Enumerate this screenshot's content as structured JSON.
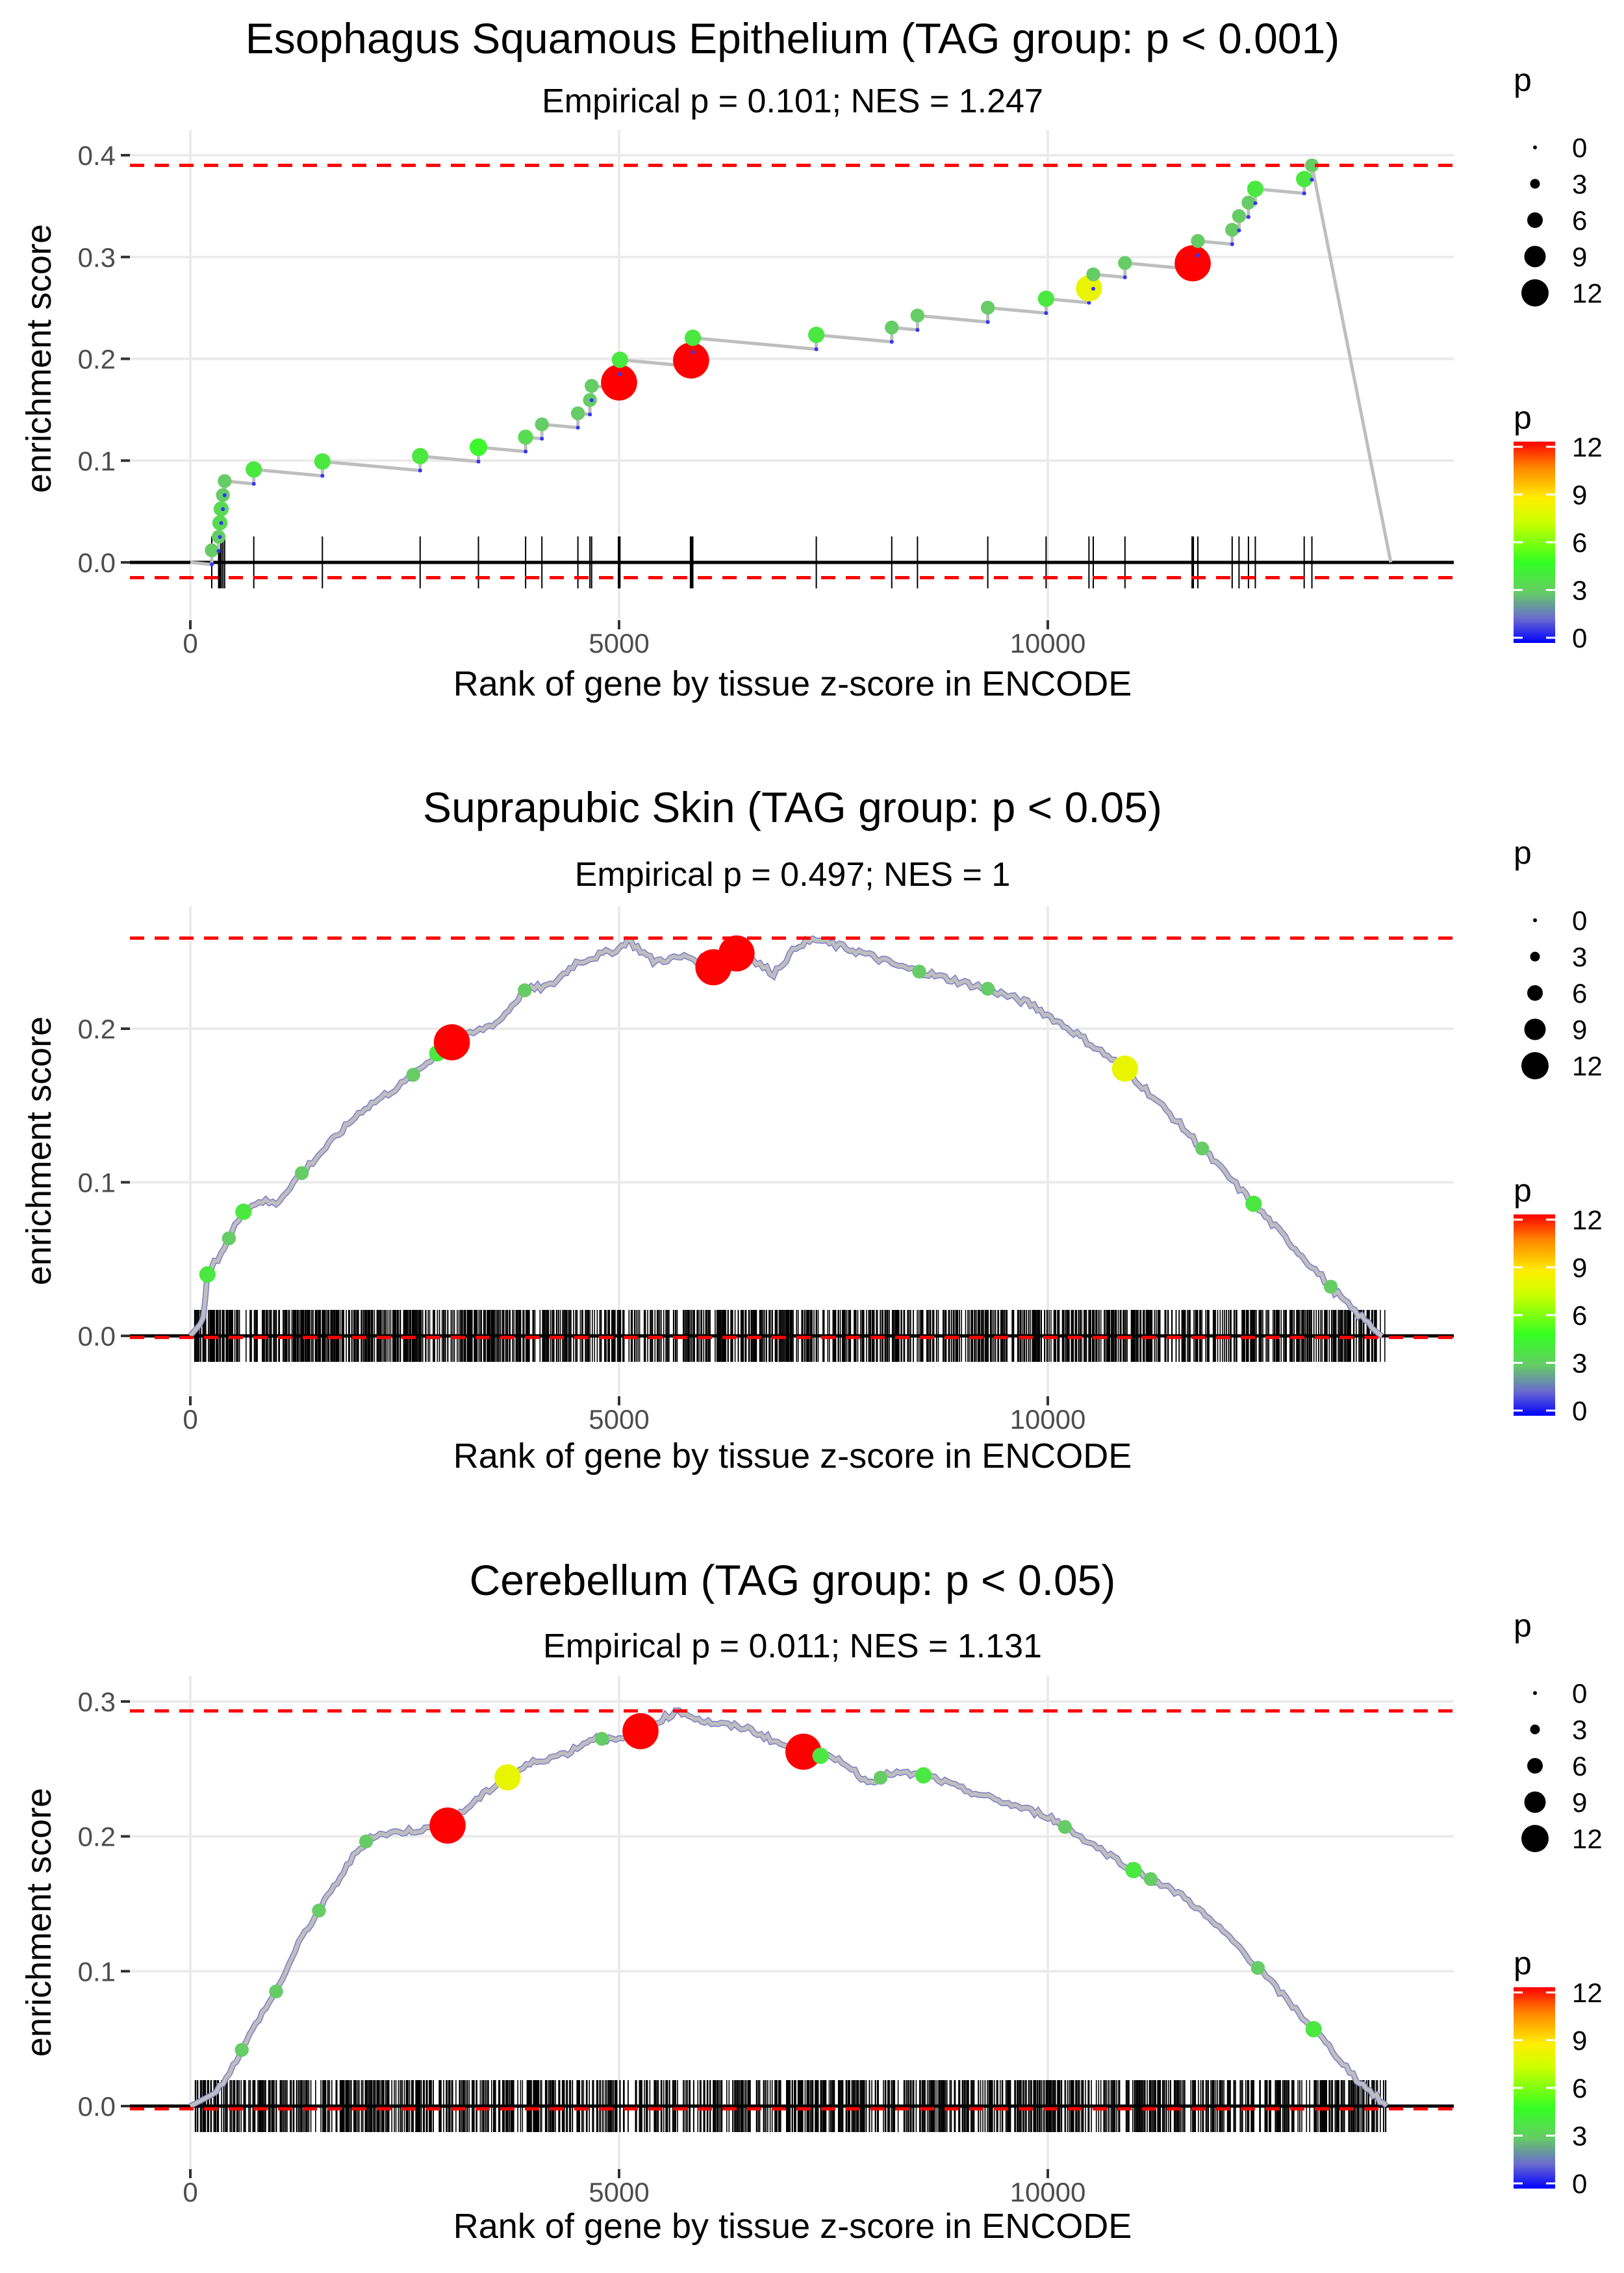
{
  "chart_data": [
    {
      "type": "line",
      "title": "Esophagus Squamous Epithelium (TAG group: p < 0.001)",
      "subtitle": "Empirical p = 0.101; NES = 1.247",
      "xlabel": "Rank of gene by tissue z-score in ENCODE",
      "ylabel": "enrichment score",
      "xlim": [
        -700,
        14700
      ],
      "ylim": [
        -0.03,
        0.41
      ],
      "x_ticks": [
        0,
        5000,
        10000
      ],
      "x_tick_labels": [
        "0",
        "5000",
        "10000"
      ],
      "y_ticks": [
        0.0,
        0.1,
        0.2,
        0.3,
        0.4
      ],
      "y_tick_labels": [
        "0.0",
        "0.1",
        "0.2",
        "0.3",
        "0.4"
      ],
      "dashed_max": 0.39,
      "dashed_min": -0.015,
      "hits": [
        {
          "x": 250,
          "p": 3
        },
        {
          "x": 330,
          "p": 3
        },
        {
          "x": 345,
          "p": 3.5
        },
        {
          "x": 360,
          "p": 3.5
        },
        {
          "x": 380,
          "p": 3
        },
        {
          "x": 400,
          "p": 3
        },
        {
          "x": 740,
          "p": 4
        },
        {
          "x": 1540,
          "p": 4
        },
        {
          "x": 2680,
          "p": 4
        },
        {
          "x": 3360,
          "p": 4.5
        },
        {
          "x": 3910,
          "p": 3.5
        },
        {
          "x": 4100,
          "p": 3
        },
        {
          "x": 4520,
          "p": 3
        },
        {
          "x": 4660,
          "p": 3
        },
        {
          "x": 4680,
          "p": 3
        },
        {
          "x": 5000,
          "p": 12
        },
        {
          "x": 5010,
          "p": 4
        },
        {
          "x": 5840,
          "p": 12
        },
        {
          "x": 5860,
          "p": 4
        },
        {
          "x": 7300,
          "p": 4
        },
        {
          "x": 8180,
          "p": 3
        },
        {
          "x": 8480,
          "p": 3
        },
        {
          "x": 9300,
          "p": 3
        },
        {
          "x": 9980,
          "p": 4
        },
        {
          "x": 10480,
          "p": 8
        },
        {
          "x": 10530,
          "p": 3
        },
        {
          "x": 10900,
          "p": 3
        },
        {
          "x": 11690,
          "p": 12
        },
        {
          "x": 11750,
          "p": 3
        },
        {
          "x": 12150,
          "p": 3
        },
        {
          "x": 12230,
          "p": 3
        },
        {
          "x": 12340,
          "p": 3
        },
        {
          "x": 12420,
          "p": 4
        },
        {
          "x": 12990,
          "p": 4
        },
        {
          "x": 13080,
          "p": 3
        }
      ],
      "end_x": 14000,
      "style": "step"
    },
    {
      "type": "line",
      "title": "Suprapubic Skin (TAG group: p < 0.05)",
      "subtitle": "Empirical p = 0.497; NES = 1",
      "xlabel": "Rank of gene by tissue z-score in ENCODE",
      "ylabel": "enrichment score",
      "xlim": [
        -700,
        14700
      ],
      "ylim": [
        -0.027,
        0.27
      ],
      "x_ticks": [
        0,
        5000,
        10000
      ],
      "x_tick_labels": [
        "0",
        "5000",
        "10000"
      ],
      "y_ticks": [
        0.0,
        0.1,
        0.2
      ],
      "y_tick_labels": [
        "0.0",
        "0.1",
        "0.2"
      ],
      "dashed_max": 0.259,
      "dashed_min": -0.001,
      "curve": [
        [
          0,
          0
        ],
        [
          150,
          0.01
        ],
        [
          200,
          0.04
        ],
        [
          400,
          0.058
        ],
        [
          600,
          0.08
        ],
        [
          800,
          0.088
        ],
        [
          1000,
          0.086
        ],
        [
          1200,
          0.1
        ],
        [
          1500,
          0.118
        ],
        [
          2000,
          0.147
        ],
        [
          2500,
          0.165
        ],
        [
          2800,
          0.18
        ],
        [
          3000,
          0.19
        ],
        [
          3300,
          0.197
        ],
        [
          3600,
          0.205
        ],
        [
          3900,
          0.225
        ],
        [
          4200,
          0.228
        ],
        [
          4500,
          0.243
        ],
        [
          5000,
          0.252
        ],
        [
          5100,
          0.258
        ],
        [
          5400,
          0.244
        ],
        [
          5800,
          0.247
        ],
        [
          6100,
          0.24
        ],
        [
          6400,
          0.25
        ],
        [
          6800,
          0.236
        ],
        [
          7100,
          0.255
        ],
        [
          7300,
          0.258
        ],
        [
          7800,
          0.25
        ],
        [
          8300,
          0.24
        ],
        [
          8800,
          0.233
        ],
        [
          9300,
          0.226
        ],
        [
          9800,
          0.216
        ],
        [
          10300,
          0.198
        ],
        [
          10900,
          0.174
        ],
        [
          11500,
          0.14
        ],
        [
          12000,
          0.11
        ],
        [
          12500,
          0.08
        ],
        [
          13000,
          0.05
        ],
        [
          13500,
          0.02
        ],
        [
          13900,
          0
        ]
      ],
      "dots": [
        {
          "x": 200,
          "p": 4
        },
        {
          "x": 450,
          "p": 3
        },
        {
          "x": 620,
          "p": 4
        },
        {
          "x": 1300,
          "p": 3
        },
        {
          "x": 2600,
          "p": 3
        },
        {
          "x": 2880,
          "p": 4
        },
        {
          "x": 3050,
          "p": 12
        },
        {
          "x": 3900,
          "p": 3
        },
        {
          "x": 6100,
          "p": 12
        },
        {
          "x": 6370,
          "p": 12
        },
        {
          "x": 8500,
          "p": 3
        },
        {
          "x": 9300,
          "p": 3
        },
        {
          "x": 10900,
          "p": 8
        },
        {
          "x": 11800,
          "p": 3
        },
        {
          "x": 12400,
          "p": 4
        },
        {
          "x": 13300,
          "p": 3
        }
      ],
      "rug_range": [
        50,
        13950
      ],
      "rug_count": 1200,
      "style": "dense"
    },
    {
      "type": "line",
      "title": "Cerebellum (TAG group: p < 0.05)",
      "subtitle": "Empirical p = 0.011; NES = 1.131",
      "xlabel": "Rank of gene by tissue z-score in ENCODE",
      "ylabel": "enrichment score",
      "xlim": [
        -700,
        14700
      ],
      "ylim": [
        -0.03,
        0.31
      ],
      "x_ticks": [
        0,
        5000,
        10000
      ],
      "x_tick_labels": [
        "0",
        "5000",
        "10000"
      ],
      "y_ticks": [
        0.0,
        0.1,
        0.2,
        0.3
      ],
      "y_tick_labels": [
        "0.0",
        "0.1",
        "0.2",
        "0.3"
      ],
      "dashed_max": 0.293,
      "dashed_min": -0.002,
      "curve": [
        [
          0,
          0
        ],
        [
          300,
          0.01
        ],
        [
          500,
          0.03
        ],
        [
          800,
          0.065
        ],
        [
          1000,
          0.085
        ],
        [
          1300,
          0.125
        ],
        [
          1600,
          0.155
        ],
        [
          1900,
          0.185
        ],
        [
          2100,
          0.2
        ],
        [
          2400,
          0.203
        ],
        [
          2700,
          0.205
        ],
        [
          3000,
          0.208
        ],
        [
          3300,
          0.225
        ],
        [
          3600,
          0.24
        ],
        [
          4000,
          0.255
        ],
        [
          4400,
          0.262
        ],
        [
          4700,
          0.273
        ],
        [
          5000,
          0.271
        ],
        [
          5250,
          0.278
        ],
        [
          5500,
          0.287
        ],
        [
          5700,
          0.293
        ],
        [
          6000,
          0.285
        ],
        [
          6500,
          0.28
        ],
        [
          7000,
          0.265
        ],
        [
          7200,
          0.262
        ],
        [
          7600,
          0.256
        ],
        [
          7900,
          0.24
        ],
        [
          8200,
          0.247
        ],
        [
          8600,
          0.245
        ],
        [
          9000,
          0.235
        ],
        [
          9500,
          0.225
        ],
        [
          10000,
          0.215
        ],
        [
          10500,
          0.195
        ],
        [
          11000,
          0.175
        ],
        [
          11600,
          0.155
        ],
        [
          12200,
          0.12
        ],
        [
          12700,
          0.085
        ],
        [
          13200,
          0.05
        ],
        [
          13600,
          0.02
        ],
        [
          13950,
          0
        ]
      ],
      "dots": [
        {
          "x": 600,
          "p": 3
        },
        {
          "x": 1000,
          "p": 3
        },
        {
          "x": 1500,
          "p": 3
        },
        {
          "x": 2050,
          "p": 3
        },
        {
          "x": 3000,
          "p": 12
        },
        {
          "x": 3700,
          "p": 8
        },
        {
          "x": 4800,
          "p": 3
        },
        {
          "x": 5250,
          "p": 12
        },
        {
          "x": 7150,
          "p": 12
        },
        {
          "x": 7350,
          "p": 4
        },
        {
          "x": 8050,
          "p": 3
        },
        {
          "x": 8550,
          "p": 4
        },
        {
          "x": 10200,
          "p": 3
        },
        {
          "x": 11000,
          "p": 4
        },
        {
          "x": 11200,
          "p": 3
        },
        {
          "x": 12450,
          "p": 3
        },
        {
          "x": 13100,
          "p": 4
        }
      ],
      "rug_range": [
        50,
        13950
      ],
      "rug_count": 1100,
      "style": "dense"
    }
  ],
  "legend": {
    "size_title": "p",
    "size_labels": [
      "0",
      "3",
      "6",
      "9",
      "12"
    ],
    "color_title": "p",
    "color_labels": [
      "12",
      "9",
      "6",
      "3",
      "0"
    ],
    "color_stops": [
      "#0000ff",
      "#7f7fbf",
      "#66cc66",
      "#33ff00",
      "#ffff00",
      "#ff8000",
      "#ff0000"
    ]
  },
  "colors": {
    "line": "#bebebe",
    "dashed": "#ff0000",
    "grid": "#ebebeb",
    "rug": "#000000"
  }
}
